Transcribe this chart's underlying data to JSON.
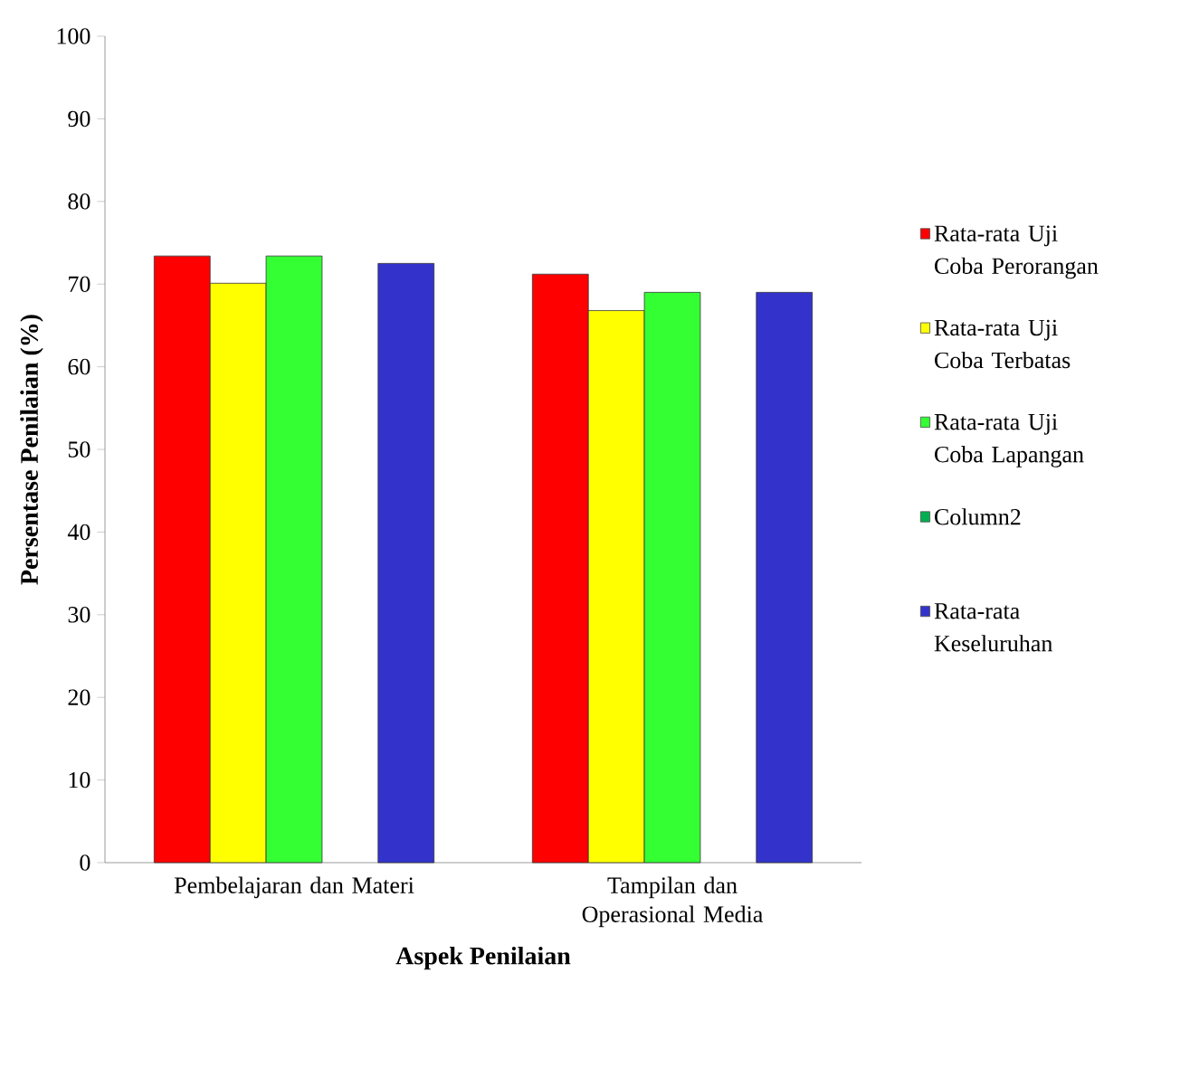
{
  "chart_data": {
    "type": "bar",
    "xlabel": "Aspek Penilaian",
    "ylabel": "Persentase Penilaian (%)",
    "categories": [
      "Pembelajaran dan Materi",
      "Tampilan dan Operasional Media"
    ],
    "series": [
      {
        "name": "Rata-rata Uji Coba Perorangan",
        "color": "#ff0000",
        "values": [
          73.4,
          71.2
        ]
      },
      {
        "name": "Rata-rata Uji Coba Terbatas",
        "color": "#ffff00",
        "values": [
          70.1,
          66.8
        ]
      },
      {
        "name": "Rata-rata Uji Coba Lapangan",
        "color": "#33ff33",
        "values": [
          73.4,
          69.0
        ]
      },
      {
        "name": "Column2",
        "color": "#00b050",
        "values": [
          null,
          null
        ]
      },
      {
        "name": "Rata-rata Keseluruhan",
        "color": "#3333cc",
        "values": [
          72.5,
          69.0
        ]
      }
    ],
    "ylim": [
      0,
      100
    ],
    "yticks": [
      0,
      10,
      20,
      30,
      40,
      50,
      60,
      70,
      80,
      90,
      100
    ],
    "legend": "right"
  }
}
